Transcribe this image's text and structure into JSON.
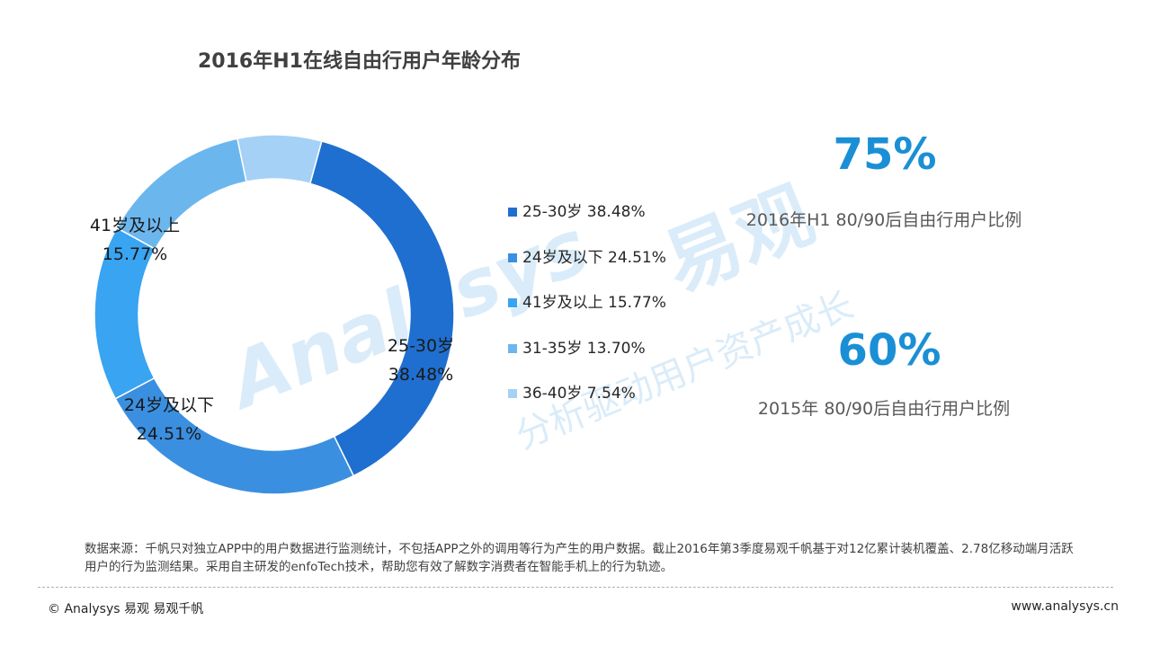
{
  "chart_data": {
    "type": "pie",
    "title": "2016年H1在线自由行用户年龄分布",
    "slices": [
      {
        "label": "25-30岁",
        "value": 38.48,
        "value_label": "38.48%",
        "color": "#1f6fd0",
        "legend_text": "25-30岁 38.48%"
      },
      {
        "label": "24岁及以下",
        "value": 24.51,
        "value_label": "24.51%",
        "color": "#3b8fe0",
        "legend_text": "24岁及以下 24.51%"
      },
      {
        "label": "41岁及以上",
        "value": 15.77,
        "value_label": "15.77%",
        "color": "#38a4f2",
        "legend_text": "41岁及以上 15.77%"
      },
      {
        "label": "31-35岁",
        "value": 13.7,
        "value_label": "13.70%",
        "color": "#6cb6ee",
        "legend_text": "31-35岁 13.70%"
      },
      {
        "label": "36-40岁",
        "value": 7.54,
        "value_label": "7.54%",
        "color": "#a5d1f6",
        "legend_text": "36-40岁 7.54%"
      }
    ],
    "legend_placement": "right"
  },
  "stats": [
    {
      "value": "75%",
      "caption": "2016年H1  80/90后自由行用户比例"
    },
    {
      "value": "60%",
      "caption": "2015年  80/90后自由行用户比例"
    }
  ],
  "watermark": {
    "brand": "易观",
    "latin": "Analysys",
    "slogan": "分析驱动用户资产成长"
  },
  "source_note": "数据来源：千帆只对独立APP中的用户数据进行监测统计，不包括APP之外的调用等行为产生的用户数据。截止2016年第3季度易观千帆基于对12亿累计装机覆盖、2.78亿移动端月活跃用户的行为监测结果。采用自主研发的enfoTech技术，帮助您有效了解数字消费者在智能手机上的行为轨迹。",
  "footer": {
    "copyright": "© Analysys 易观 易观千帆",
    "url": "www.analysys.cn"
  }
}
